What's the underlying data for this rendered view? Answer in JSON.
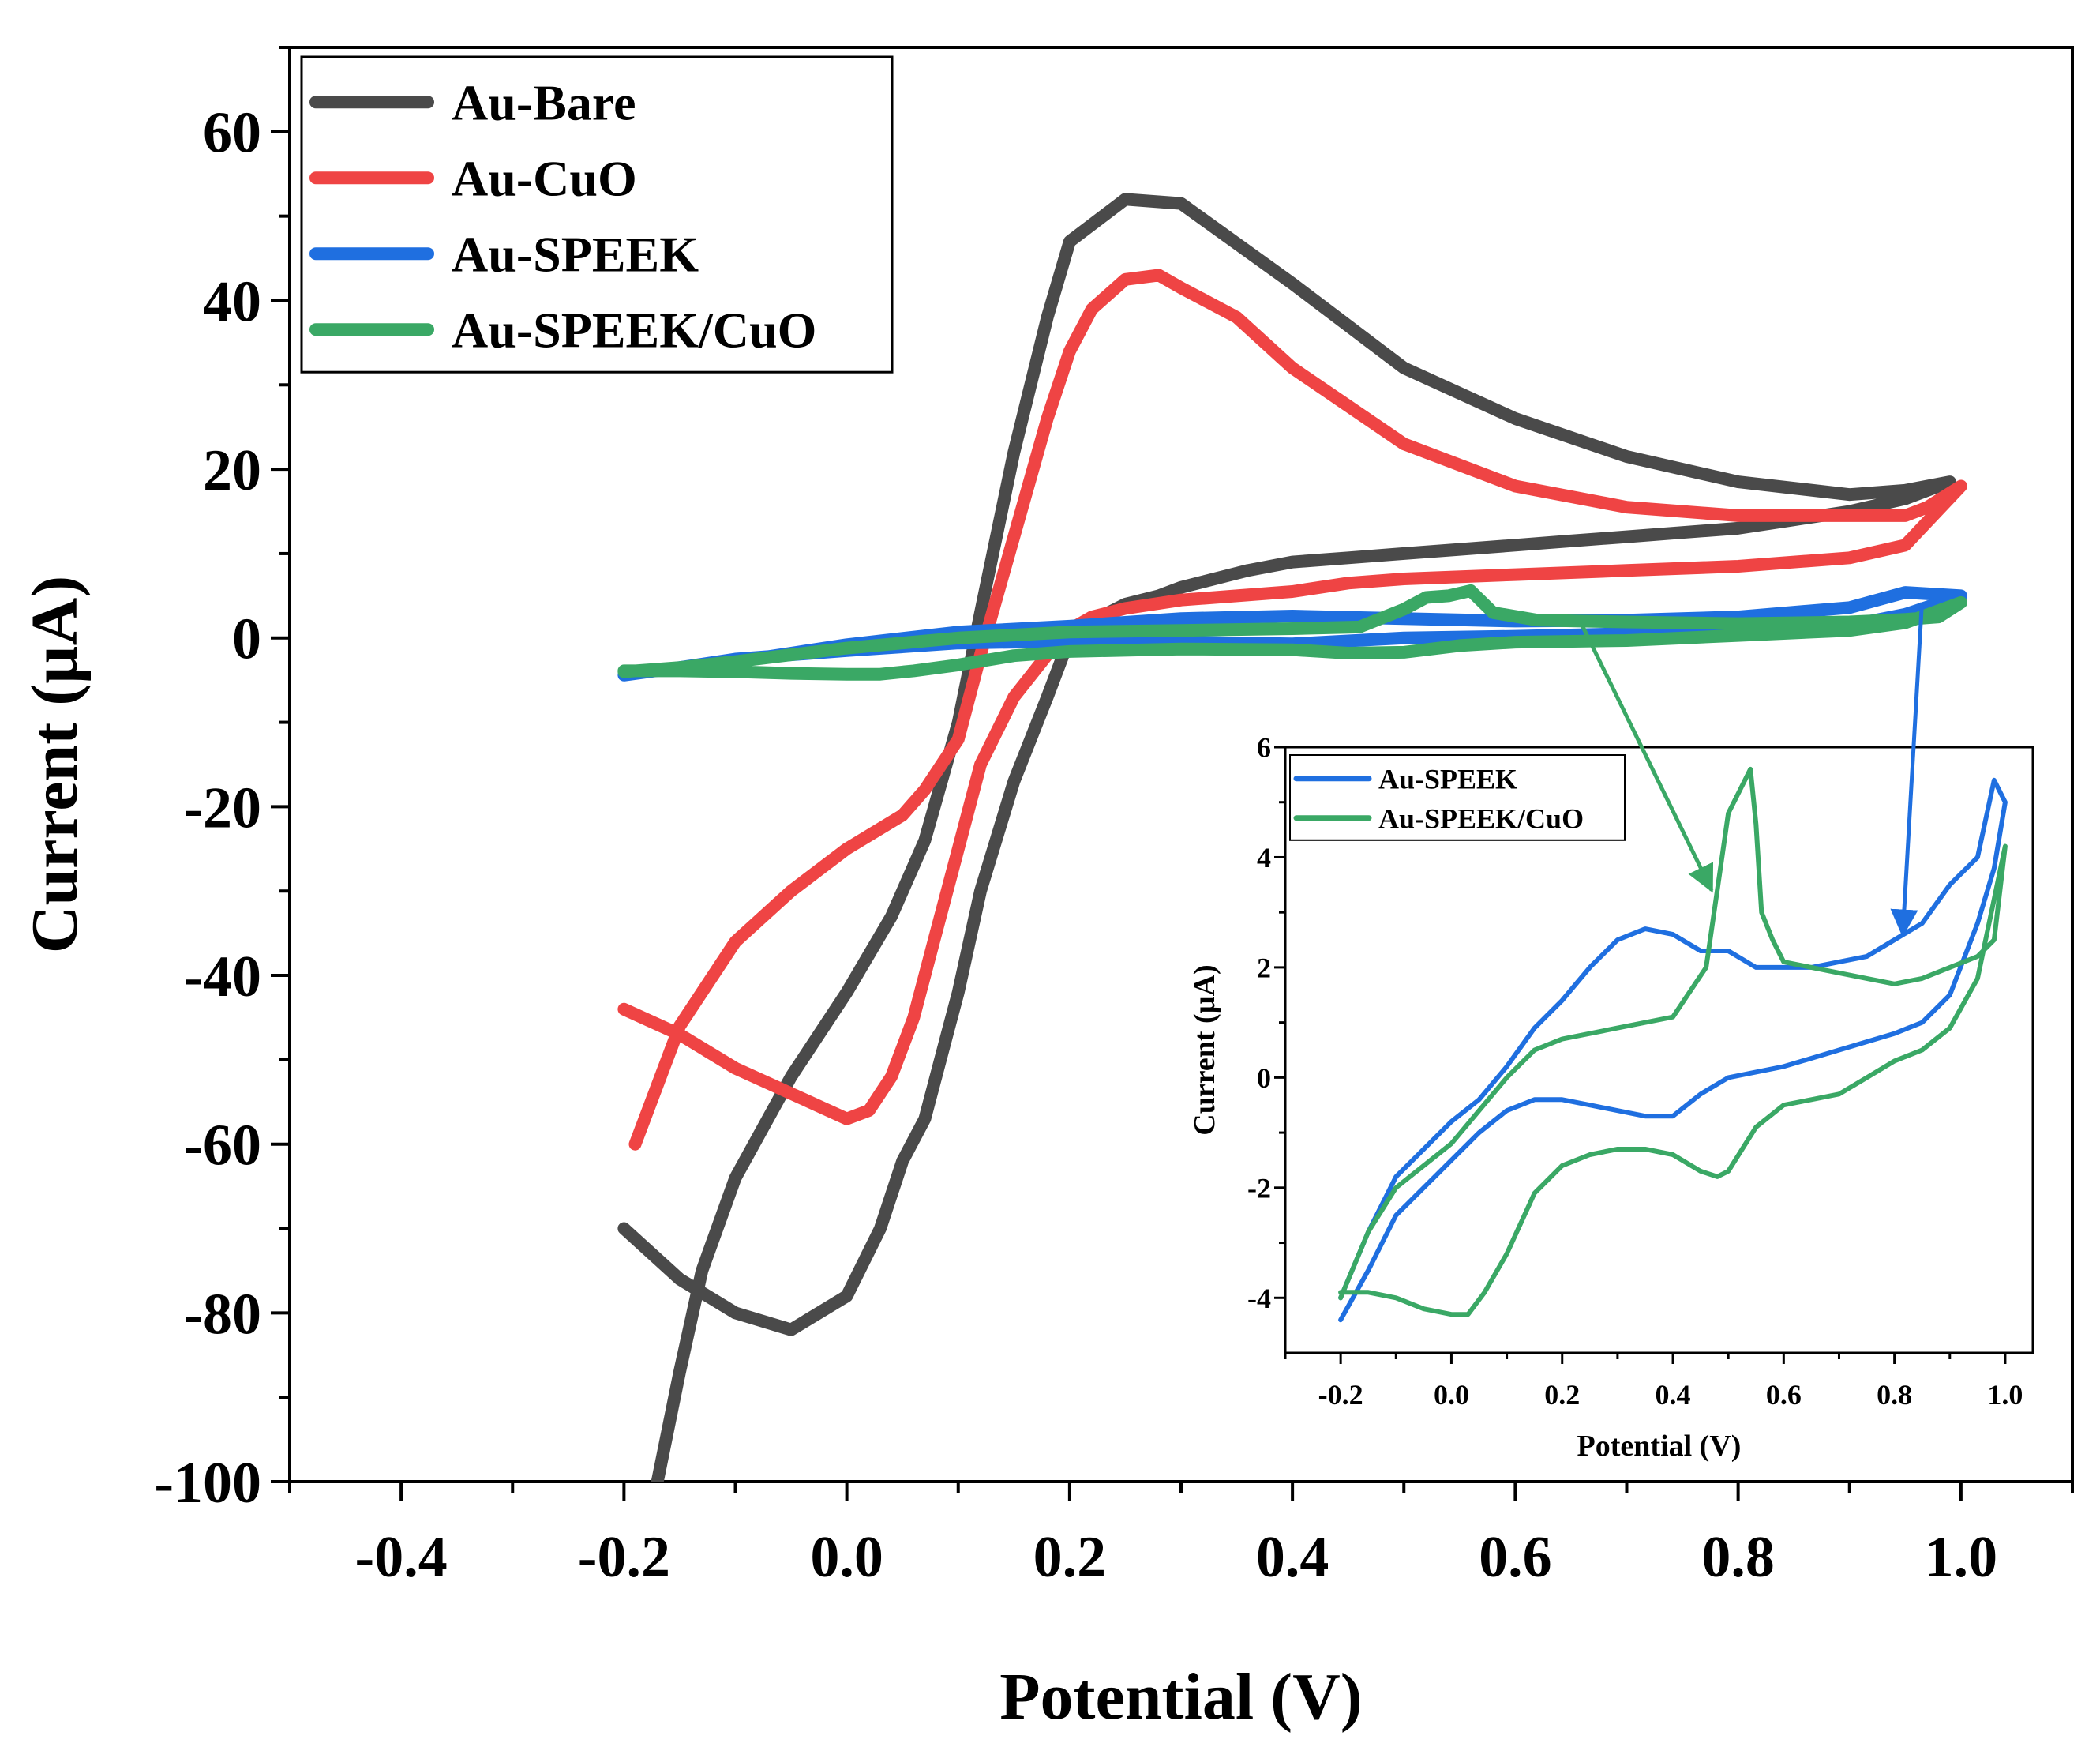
{
  "chart_data": [
    {
      "type": "line",
      "xlabel": "Potential (V)",
      "ylabel": "Current (µA)",
      "xlim": [
        -0.5,
        1.1
      ],
      "ylim": [
        -100,
        70
      ],
      "xticks": [
        -0.4,
        -0.2,
        0.0,
        0.2,
        0.4,
        0.6,
        0.8,
        1.0
      ],
      "xtick_labels": [
        "-0.4",
        "-0.2",
        "0.0",
        "0.2",
        "0.4",
        "0.6",
        "0.8",
        "1.0"
      ],
      "yticks": [
        -100,
        -80,
        -60,
        -40,
        -20,
        0,
        20,
        40,
        60
      ],
      "ytick_labels": [
        "-100",
        "-80",
        "-60",
        "-40",
        "-20",
        "0",
        "20",
        "40",
        "60"
      ],
      "legend_position": "top-left",
      "series": [
        {
          "name": "Au-Bare",
          "color": "#4a4a4a",
          "x": [
            -0.2,
            -0.15,
            -0.1,
            -0.05,
            0.0,
            0.03,
            0.05,
            0.07,
            0.09,
            0.1,
            0.12,
            0.15,
            0.18,
            0.2,
            0.22,
            0.25,
            0.28,
            0.3,
            0.33,
            0.36,
            0.4,
            0.45,
            0.5,
            0.55,
            0.6,
            0.65,
            0.7,
            0.75,
            0.8,
            0.85,
            0.9,
            0.95,
            0.99,
            0.95,
            0.9,
            0.8,
            0.7,
            0.6,
            0.5,
            0.4,
            0.3,
            0.25,
            0.2,
            0.18,
            0.15,
            0.12,
            0.1,
            0.07,
            0.04,
            0.0,
            -0.05,
            -0.1,
            -0.13,
            -0.15,
            -0.17
          ],
          "y": [
            -70,
            -76,
            -80,
            -82,
            -78,
            -70,
            -62,
            -57,
            -47,
            -42,
            -30,
            -17,
            -7,
            0,
            2,
            4,
            5,
            6,
            7,
            8,
            9,
            9.5,
            10,
            10.5,
            11,
            11.5,
            12,
            12.5,
            13,
            14,
            15,
            16.5,
            18.5,
            17.5,
            17,
            18.5,
            21.5,
            26,
            32,
            42,
            51.5,
            52,
            47,
            38,
            22,
            3,
            -10,
            -24,
            -33,
            -42,
            -52,
            -64,
            -75,
            -87,
            -100
          ]
        },
        {
          "name": "Au-CuO",
          "color": "#ef4444",
          "x": [
            -0.2,
            -0.15,
            -0.1,
            -0.05,
            0.0,
            0.02,
            0.04,
            0.06,
            0.08,
            0.1,
            0.12,
            0.15,
            0.18,
            0.2,
            0.22,
            0.25,
            0.3,
            0.35,
            0.4,
            0.45,
            0.5,
            0.6,
            0.7,
            0.8,
            0.9,
            0.95,
            1.0,
            0.97,
            0.95,
            0.9,
            0.8,
            0.7,
            0.6,
            0.5,
            0.45,
            0.4,
            0.35,
            0.3,
            0.28,
            0.25,
            0.22,
            0.2,
            0.18,
            0.15,
            0.12,
            0.1,
            0.07,
            0.05,
            0.0,
            -0.05,
            -0.1,
            -0.15,
            -0.19
          ],
          "y": [
            -44,
            -47,
            -51,
            -54,
            -57,
            -56,
            -52,
            -45,
            -35,
            -25,
            -15,
            -7,
            -2,
            1,
            2.5,
            3.5,
            4.5,
            5,
            5.5,
            6.5,
            7,
            7.5,
            8,
            8.5,
            9.5,
            11,
            18,
            15.5,
            14.5,
            14.5,
            14.5,
            15.5,
            18,
            23,
            27.5,
            32,
            38,
            41.5,
            43,
            42.5,
            39,
            34,
            26,
            12,
            -2,
            -12,
            -18,
            -21,
            -25,
            -30,
            -36,
            -46,
            -60
          ]
        },
        {
          "name": "Au-SPEEK",
          "color": "#1f6fe0",
          "x": [
            -0.2,
            -0.15,
            -0.1,
            0.0,
            0.1,
            0.2,
            0.3,
            0.4,
            0.5,
            0.6,
            0.7,
            0.8,
            0.9,
            0.95,
            1.0,
            0.95,
            0.9,
            0.8,
            0.7,
            0.6,
            0.5,
            0.4,
            0.3,
            0.2,
            0.1,
            0.0,
            -0.05,
            -0.1,
            -0.15,
            -0.2
          ],
          "y": [
            -4.4,
            -3.5,
            -2.5,
            -1.5,
            -0.6,
            -0.4,
            -0.5,
            -0.7,
            0.0,
            0.2,
            0.5,
            0.8,
            1.5,
            2.8,
            5.0,
            5.4,
            3.6,
            2.5,
            2.1,
            2.0,
            2.3,
            2.6,
            2.3,
            1.4,
            0.7,
            -0.8,
            -1.8,
            -2.8,
            -3.5,
            -4.4
          ]
        },
        {
          "name": "Au-SPEEK/CuO",
          "color": "#3aa865",
          "x": [
            -0.2,
            -0.15,
            -0.1,
            -0.05,
            0.0,
            0.03,
            0.06,
            0.1,
            0.15,
            0.2,
            0.3,
            0.4,
            0.45,
            0.5,
            0.55,
            0.6,
            0.7,
            0.8,
            0.9,
            0.95,
            1.0,
            0.98,
            0.95,
            0.9,
            0.8,
            0.7,
            0.62,
            0.58,
            0.56,
            0.54,
            0.52,
            0.5,
            0.46,
            0.4,
            0.3,
            0.2,
            0.1,
            0.0,
            -0.05,
            -0.1,
            -0.15,
            -0.2
          ],
          "y": [
            -3.9,
            -3.9,
            -4.0,
            -4.2,
            -4.3,
            -4.3,
            -3.9,
            -3.2,
            -2.1,
            -1.6,
            -1.3,
            -1.4,
            -1.8,
            -1.7,
            -0.9,
            -0.5,
            -0.3,
            0.3,
            0.9,
            1.8,
            4.2,
            2.5,
            2.2,
            1.9,
            1.7,
            1.9,
            2.1,
            3.0,
            5.6,
            5.0,
            4.8,
            3.4,
            1.3,
            1.1,
            0.9,
            0.7,
            0.0,
            -1.2,
            -2.0,
            -2.8,
            -3.5,
            -4.0
          ]
        }
      ]
    },
    {
      "type": "line",
      "role": "inset",
      "xlabel": "Potential (V)",
      "ylabel": "Current (µA)",
      "xlim": [
        -0.3,
        1.05
      ],
      "ylim": [
        -5,
        6
      ],
      "xticks": [
        -0.2,
        0.0,
        0.2,
        0.4,
        0.6,
        0.8,
        1.0
      ],
      "xtick_labels": [
        "-0.2",
        "0.0",
        "0.2",
        "0.4",
        "0.6",
        "0.8",
        "1.0"
      ],
      "yticks": [
        -4,
        -2,
        0,
        2,
        4,
        6
      ],
      "ytick_labels": [
        "-4",
        "-2",
        "0",
        "2",
        "4",
        "6"
      ],
      "legend_position": "top-left",
      "series": [
        {
          "name": "Au-SPEEK",
          "color": "#1f6fe0",
          "x": [
            -0.2,
            -0.15,
            -0.1,
            0.0,
            0.05,
            0.1,
            0.15,
            0.2,
            0.25,
            0.3,
            0.35,
            0.4,
            0.45,
            0.5,
            0.6,
            0.7,
            0.8,
            0.85,
            0.9,
            0.95,
            0.98,
            1.0,
            0.98,
            0.95,
            0.9,
            0.85,
            0.8,
            0.75,
            0.7,
            0.65,
            0.6,
            0.55,
            0.5,
            0.45,
            0.4,
            0.35,
            0.3,
            0.25,
            0.2,
            0.15,
            0.1,
            0.05,
            0.0,
            -0.05,
            -0.1,
            -0.15,
            -0.2
          ],
          "y": [
            -4.4,
            -3.5,
            -2.5,
            -1.5,
            -1.0,
            -0.6,
            -0.4,
            -0.4,
            -0.5,
            -0.6,
            -0.7,
            -0.7,
            -0.3,
            0.0,
            0.2,
            0.5,
            0.8,
            1.0,
            1.5,
            2.8,
            3.8,
            5.0,
            5.4,
            4.0,
            3.5,
            2.8,
            2.5,
            2.2,
            2.1,
            2.0,
            2.0,
            2.0,
            2.3,
            2.3,
            2.6,
            2.7,
            2.5,
            2.0,
            1.4,
            0.9,
            0.2,
            -0.4,
            -0.8,
            -1.3,
            -1.8,
            -2.8,
            -4.0
          ]
        },
        {
          "name": "Au-SPEEK/CuO",
          "color": "#3aa865",
          "x": [
            -0.2,
            -0.15,
            -0.1,
            -0.05,
            0.0,
            0.03,
            0.06,
            0.1,
            0.15,
            0.2,
            0.25,
            0.3,
            0.35,
            0.4,
            0.45,
            0.48,
            0.5,
            0.55,
            0.6,
            0.65,
            0.7,
            0.75,
            0.8,
            0.85,
            0.9,
            0.95,
            1.0,
            0.98,
            0.95,
            0.9,
            0.85,
            0.8,
            0.75,
            0.7,
            0.65,
            0.6,
            0.58,
            0.56,
            0.55,
            0.54,
            0.52,
            0.5,
            0.48,
            0.46,
            0.4,
            0.3,
            0.2,
            0.15,
            0.1,
            0.05,
            0.0,
            -0.05,
            -0.1,
            -0.15,
            -0.2
          ],
          "y": [
            -3.9,
            -3.9,
            -4.0,
            -4.2,
            -4.3,
            -4.3,
            -3.9,
            -3.2,
            -2.1,
            -1.6,
            -1.4,
            -1.3,
            -1.3,
            -1.4,
            -1.7,
            -1.8,
            -1.7,
            -0.9,
            -0.5,
            -0.4,
            -0.3,
            0.0,
            0.3,
            0.5,
            0.9,
            1.8,
            4.2,
            2.5,
            2.2,
            2.0,
            1.8,
            1.7,
            1.8,
            1.9,
            2.0,
            2.1,
            2.5,
            3.0,
            4.6,
            5.6,
            5.2,
            4.8,
            3.4,
            2.0,
            1.1,
            0.9,
            0.7,
            0.5,
            0.0,
            -0.6,
            -1.2,
            -1.6,
            -2.0,
            -2.8,
            -4.0
          ]
        }
      ]
    }
  ]
}
